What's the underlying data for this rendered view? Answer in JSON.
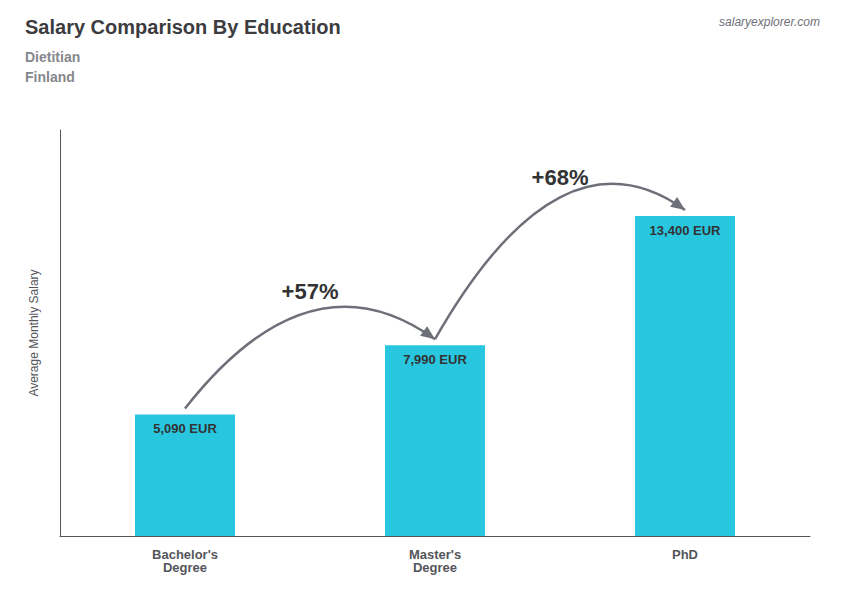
{
  "chart_data": {
    "type": "bar",
    "title": "Salary Comparison By Education",
    "subtitle": "Dietitian\nFinland",
    "ylabel": "Average Monthly Salary",
    "categories": [
      "Bachelor's\nDegree",
      "Master's\nDegree",
      "PhD"
    ],
    "values": [
      5090,
      7990,
      13400
    ],
    "value_labels": [
      "5,090 EUR",
      "7,990 EUR",
      "13,400 EUR"
    ],
    "data_labels": true,
    "color": "#29c6e0",
    "ylim": [
      0,
      17000
    ],
    "tick_labels": "x",
    "grid": false,
    "annotations": [
      {
        "text": "+57%",
        "from": "Bachelor's\nDegree",
        "to": "Master's\nDegree"
      },
      {
        "text": "+68%",
        "from": "Master's\nDegree",
        "to": "PhD"
      },
      {
        "text": "salaryexplorer.com"
      }
    ]
  }
}
